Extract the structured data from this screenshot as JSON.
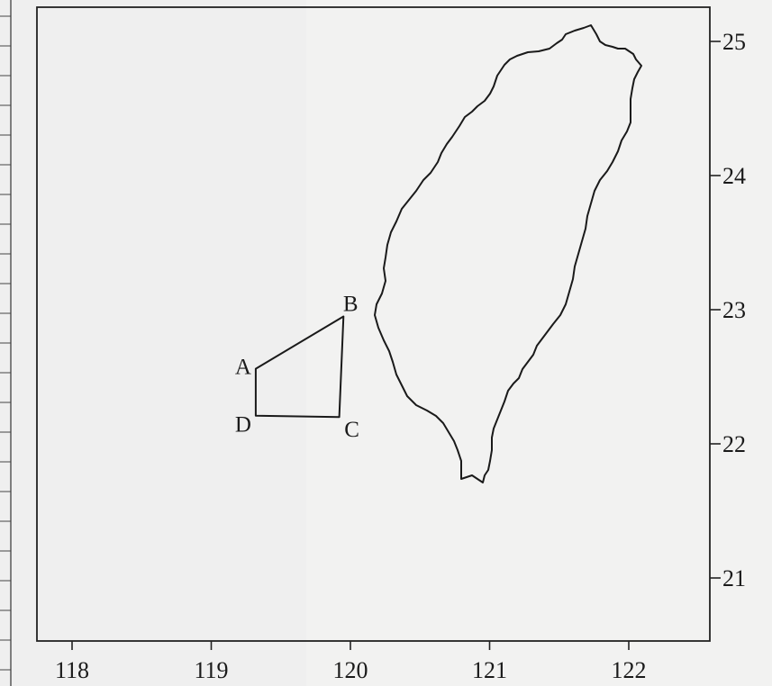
{
  "map": {
    "lon_ticks": [
      {
        "value": 118,
        "label": "118"
      },
      {
        "value": 119,
        "label": "119"
      },
      {
        "value": 120,
        "label": "120"
      },
      {
        "value": 121,
        "label": "121"
      },
      {
        "value": 122,
        "label": "122"
      }
    ],
    "lat_ticks": [
      {
        "value": 25,
        "label": "25"
      },
      {
        "value": 24,
        "label": "24"
      },
      {
        "value": 23,
        "label": "23"
      },
      {
        "value": 22,
        "label": "22"
      },
      {
        "value": 21,
        "label": "21"
      }
    ],
    "points": [
      {
        "label": "A",
        "lon": 119.32,
        "lat": 22.56
      },
      {
        "label": "B",
        "lon": 119.95,
        "lat": 22.95
      },
      {
        "label": "C",
        "lon": 119.92,
        "lat": 22.2
      },
      {
        "label": "D",
        "lon": 119.32,
        "lat": 22.21
      }
    ],
    "quadrilateral_order": [
      "A",
      "B",
      "C",
      "D"
    ],
    "island_name_icon": "taiwan-outline",
    "colors": {
      "line": "#1a1a1a",
      "frame": "#222222",
      "paper": "#f2f2f1"
    }
  }
}
